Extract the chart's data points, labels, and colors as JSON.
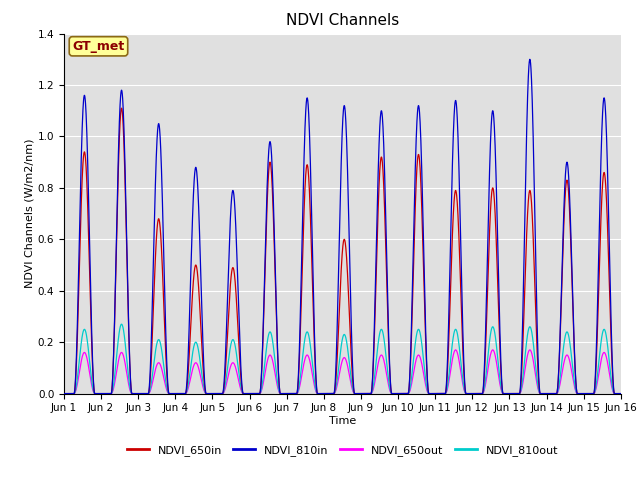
{
  "title": "NDVI Channels",
  "xlabel": "Time",
  "ylabel": "NDVI Channels (W/m2/nm)",
  "ylim": [
    0.0,
    1.4
  ],
  "xlim_days": [
    1,
    16
  ],
  "annotation_text": "GT_met",
  "annotation_color": "#8B0000",
  "annotation_bg": "#FFFF99",
  "background_color": "#E0E0E0",
  "colors": {
    "NDVI_650in": "#CC0000",
    "NDVI_810in": "#0000CC",
    "NDVI_650out": "#FF00FF",
    "NDVI_810out": "#00CCCC"
  },
  "peak_810in": [
    1.16,
    1.18,
    1.05,
    0.88,
    0.79,
    0.98,
    1.15,
    1.12,
    1.1,
    1.12,
    1.14,
    1.1,
    1.3,
    0.9,
    1.15
  ],
  "peak_650in": [
    0.94,
    1.11,
    0.68,
    0.5,
    0.49,
    0.9,
    0.89,
    0.6,
    0.92,
    0.93,
    0.79,
    0.8,
    0.79,
    0.83,
    0.86
  ],
  "peak_810out": [
    0.25,
    0.27,
    0.21,
    0.2,
    0.21,
    0.24,
    0.24,
    0.23,
    0.25,
    0.25,
    0.25,
    0.26,
    0.26,
    0.24,
    0.25
  ],
  "peak_650out": [
    0.16,
    0.16,
    0.12,
    0.12,
    0.12,
    0.15,
    0.15,
    0.14,
    0.15,
    0.15,
    0.17,
    0.17,
    0.17,
    0.15,
    0.16
  ],
  "samples_per_day": 200,
  "title_fontsize": 11,
  "axis_label_fontsize": 8,
  "tick_fontsize": 7.5,
  "legend_fontsize": 8
}
